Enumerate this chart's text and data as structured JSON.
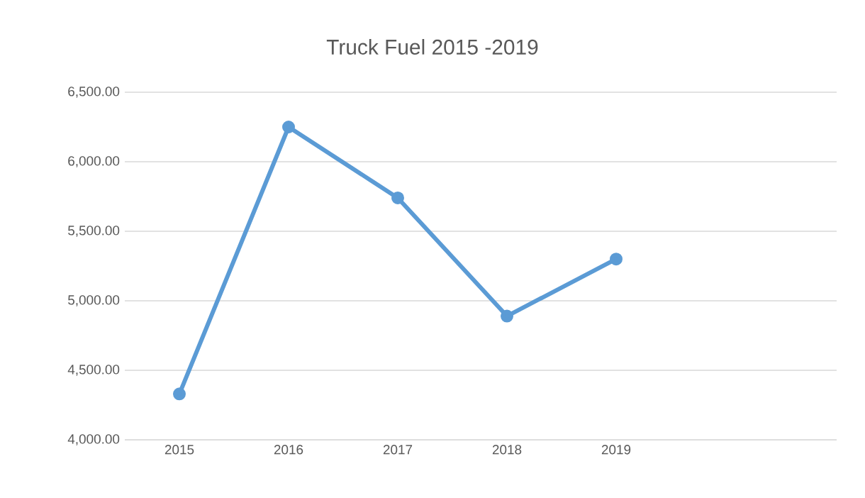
{
  "chart_data": {
    "type": "line",
    "title": "Truck Fuel 2015 -2019",
    "categories": [
      "2015",
      "2016",
      "2017",
      "2018",
      "2019"
    ],
    "values": [
      4330,
      6250,
      5740,
      4890,
      5300
    ],
    "color": "#5b9bd5",
    "ylim": [
      4000,
      6500
    ],
    "yticks": [
      {
        "value": 4000,
        "label": "4,000.00"
      },
      {
        "value": 4500,
        "label": "4,500.00"
      },
      {
        "value": 5000,
        "label": "5,000.00"
      },
      {
        "value": 5500,
        "label": "5,500.00"
      },
      {
        "value": 6000,
        "label": "6,000.00"
      },
      {
        "value": 6500,
        "label": "6,500.00"
      }
    ],
    "grid": "y",
    "marker": "circle"
  }
}
